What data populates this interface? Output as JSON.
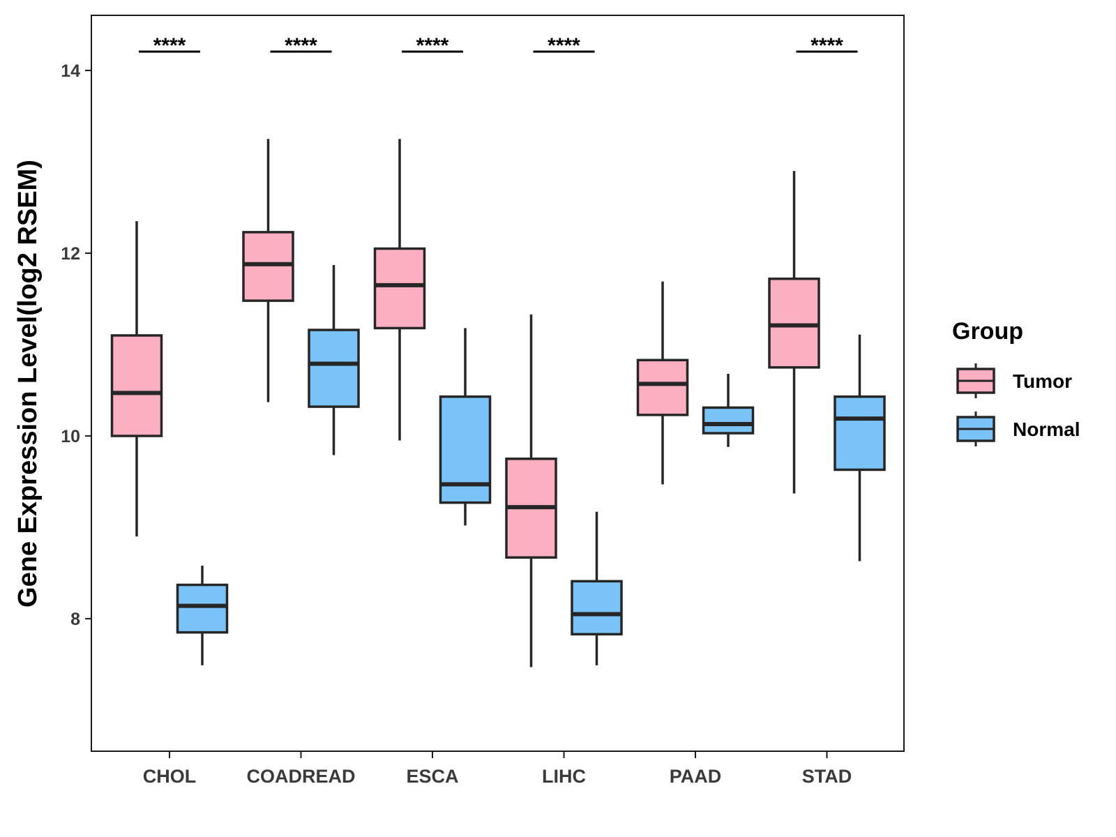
{
  "chart_data": {
    "type": "boxplot",
    "title": "",
    "xlabel": "",
    "ylabel": "Gene Expression Level(log2 RSEM)",
    "ylim": [
      6.5,
      14.6
    ],
    "yticks": [
      8,
      10,
      12,
      14
    ],
    "grid": false,
    "categories": [
      "CHOL",
      "COADREAD",
      "ESCA",
      "LIHC",
      "PAAD",
      "STAD"
    ],
    "legend": {
      "title": "Group",
      "position": "right",
      "entries": [
        "Tumor",
        "Normal"
      ]
    },
    "series": [
      {
        "name": "Tumor",
        "color": "#FBAFC1",
        "boxes": [
          {
            "category": "CHOL",
            "min": 8.9,
            "q1": 10.0,
            "median": 10.47,
            "q3": 11.1,
            "max": 12.35
          },
          {
            "category": "COADREAD",
            "min": 10.37,
            "q1": 11.48,
            "median": 11.88,
            "q3": 12.23,
            "max": 13.25
          },
          {
            "category": "ESCA",
            "min": 9.95,
            "q1": 11.18,
            "median": 11.65,
            "q3": 12.05,
            "max": 13.25
          },
          {
            "category": "LIHC",
            "min": 7.47,
            "q1": 8.67,
            "median": 9.22,
            "q3": 9.75,
            "max": 11.33
          },
          {
            "category": "PAAD",
            "min": 9.47,
            "q1": 10.23,
            "median": 10.57,
            "q3": 10.83,
            "max": 11.69
          },
          {
            "category": "STAD",
            "min": 9.37,
            "q1": 10.75,
            "median": 11.21,
            "q3": 11.72,
            "max": 12.9
          }
        ]
      },
      {
        "name": "Normal",
        "color": "#7AC3F8",
        "boxes": [
          {
            "category": "CHOL",
            "min": 7.49,
            "q1": 7.85,
            "median": 8.14,
            "q3": 8.37,
            "max": 8.58
          },
          {
            "category": "COADREAD",
            "min": 9.79,
            "q1": 10.32,
            "median": 10.79,
            "q3": 11.16,
            "max": 11.87
          },
          {
            "category": "ESCA",
            "min": 9.02,
            "q1": 9.27,
            "median": 9.47,
            "q3": 10.43,
            "max": 11.18
          },
          {
            "category": "LIHC",
            "min": 7.49,
            "q1": 7.83,
            "median": 8.05,
            "q3": 8.41,
            "max": 9.17
          },
          {
            "category": "PAAD",
            "min": 9.88,
            "q1": 10.03,
            "median": 10.13,
            "q3": 10.31,
            "max": 10.68
          },
          {
            "category": "STAD",
            "min": 8.63,
            "q1": 9.63,
            "median": 10.19,
            "q3": 10.43,
            "max": 11.11
          }
        ]
      }
    ],
    "annotations": [
      {
        "category": "CHOL",
        "text": "****"
      },
      {
        "category": "COADREAD",
        "text": "****"
      },
      {
        "category": "ESCA",
        "text": "****"
      },
      {
        "category": "LIHC",
        "text": "****"
      },
      {
        "category": "STAD",
        "text": "****"
      }
    ]
  }
}
